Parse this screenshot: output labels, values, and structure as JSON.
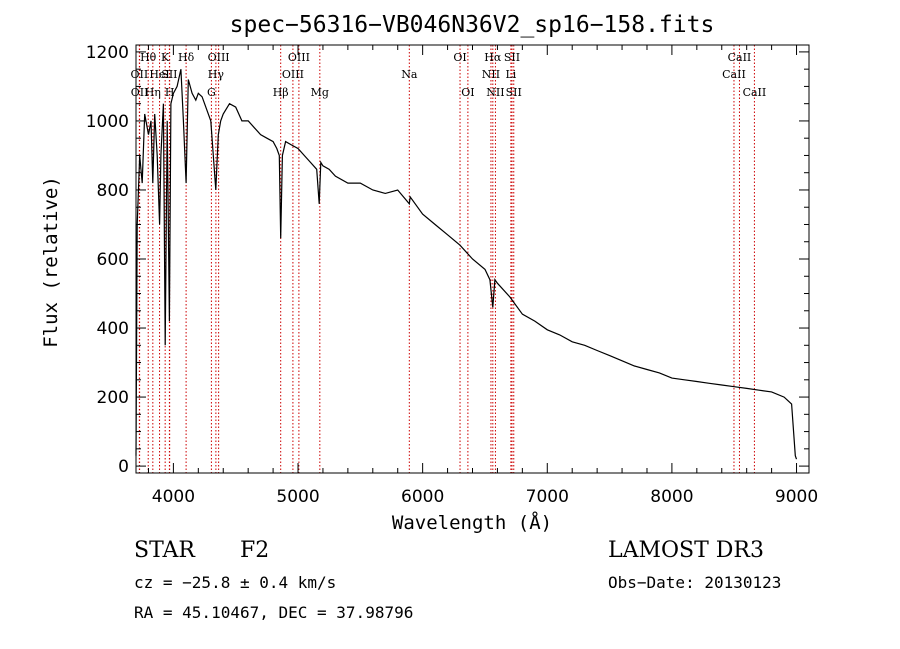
{
  "chart_data": {
    "type": "line",
    "title": "spec−56316−VB046N36V2_sp16−158.fits",
    "xlabel": "Wavelength (Å)",
    "ylabel": "Flux (relative)",
    "xlim": [
      3700,
      9100
    ],
    "ylim": [
      -20,
      1220
    ],
    "xticks": [
      4000,
      5000,
      6000,
      7000,
      8000,
      9000
    ],
    "yticks": [
      0,
      200,
      400,
      600,
      800,
      1000,
      1200
    ],
    "series": [
      {
        "name": "spectrum",
        "color": "#000000",
        "x": [
          3700,
          3710,
          3730,
          3750,
          3770,
          3800,
          3820,
          3835,
          3850,
          3870,
          3889,
          3900,
          3920,
          3934,
          3950,
          3968,
          3980,
          4000,
          4030,
          4060,
          4080,
          4102,
          4120,
          4150,
          4180,
          4200,
          4230,
          4260,
          4300,
          4320,
          4340,
          4360,
          4380,
          4400,
          4450,
          4500,
          4550,
          4600,
          4650,
          4700,
          4750,
          4800,
          4830,
          4850,
          4861,
          4875,
          4900,
          4950,
          5000,
          5050,
          5100,
          5150,
          5170,
          5183,
          5200,
          5250,
          5300,
          5400,
          5500,
          5600,
          5700,
          5800,
          5893,
          5900,
          6000,
          6100,
          6200,
          6300,
          6400,
          6500,
          6540,
          6563,
          6580,
          6600,
          6700,
          6800,
          6900,
          7000,
          7100,
          7200,
          7300,
          7400,
          7500,
          7600,
          7700,
          7800,
          7900,
          8000,
          8100,
          8200,
          8300,
          8400,
          8500,
          8600,
          8700,
          8800,
          8900,
          8960,
          8990,
          9000
        ],
        "y": [
          30,
          700,
          900,
          820,
          1020,
          960,
          1000,
          820,
          1020,
          900,
          700,
          900,
          1050,
          350,
          1000,
          420,
          1050,
          1080,
          1100,
          1150,
          1000,
          820,
          1120,
          1080,
          1060,
          1080,
          1070,
          1040,
          1000,
          900,
          800,
          960,
          1000,
          1020,
          1050,
          1040,
          1000,
          1000,
          980,
          960,
          950,
          940,
          920,
          900,
          660,
          900,
          940,
          930,
          920,
          900,
          880,
          860,
          760,
          880,
          870,
          860,
          840,
          820,
          820,
          800,
          790,
          800,
          760,
          780,
          730,
          700,
          670,
          640,
          600,
          570,
          540,
          460,
          540,
          530,
          490,
          440,
          420,
          395,
          380,
          360,
          350,
          335,
          320,
          305,
          290,
          280,
          270,
          255,
          250,
          245,
          240,
          235,
          230,
          225,
          220,
          215,
          200,
          180,
          30,
          20
        ]
      }
    ],
    "lines": [
      {
        "label": "Hθ",
        "x": 3798,
        "row": 1
      },
      {
        "label": "OII",
        "x": 3727,
        "row": 2
      },
      {
        "label": "OII",
        "x": 3729,
        "row": 3
      },
      {
        "label": "Hη",
        "x": 3835,
        "row": 3
      },
      {
        "label": "HeI",
        "x": 3889,
        "row": 2
      },
      {
        "label": "K",
        "x": 3934,
        "row": 1
      },
      {
        "label": "SII",
        "x": 3968,
        "row": 2
      },
      {
        "label": "H",
        "x": 3970,
        "row": 3
      },
      {
        "label": "Hδ",
        "x": 4102,
        "row": 1
      },
      {
        "label": "OIII",
        "x": 4363,
        "row": 1
      },
      {
        "label": "Hγ",
        "x": 4341,
        "row": 2
      },
      {
        "label": "G",
        "x": 4305,
        "row": 3
      },
      {
        "label": "Hβ",
        "x": 4861,
        "row": 3
      },
      {
        "label": "OIII",
        "x": 4959,
        "row": 2
      },
      {
        "label": "OIII",
        "x": 5007,
        "row": 1
      },
      {
        "label": "Mg",
        "x": 5175,
        "row": 3
      },
      {
        "label": "Na",
        "x": 5893,
        "row": 2
      },
      {
        "label": "OI",
        "x": 6300,
        "row": 1
      },
      {
        "label": "OI",
        "x": 6363,
        "row": 3
      },
      {
        "label": "Hα",
        "x": 6563,
        "row": 1
      },
      {
        "label": "NII",
        "x": 6548,
        "row": 2
      },
      {
        "label": "NII",
        "x": 6584,
        "row": 3
      },
      {
        "label": "SII",
        "x": 6717,
        "row": 1
      },
      {
        "label": "Li",
        "x": 6708,
        "row": 2
      },
      {
        "label": "SII",
        "x": 6731,
        "row": 3
      },
      {
        "label": "CaII",
        "x": 8498,
        "row": 2
      },
      {
        "label": "CaII",
        "x": 8542,
        "row": 1
      },
      {
        "label": "CaII",
        "x": 8662,
        "row": 3
      }
    ]
  },
  "info": {
    "object_class": "STAR",
    "subclass": "F2",
    "survey": "LAMOST DR3",
    "cz": "cz = −25.8 ± 0.4 km/s",
    "obs_date": "Obs−Date: 20130123",
    "coords": "RA =  45.10467, DEC =  37.98796"
  },
  "colors": {
    "line_marker": "#cc0000",
    "spectrum": "#000000"
  }
}
